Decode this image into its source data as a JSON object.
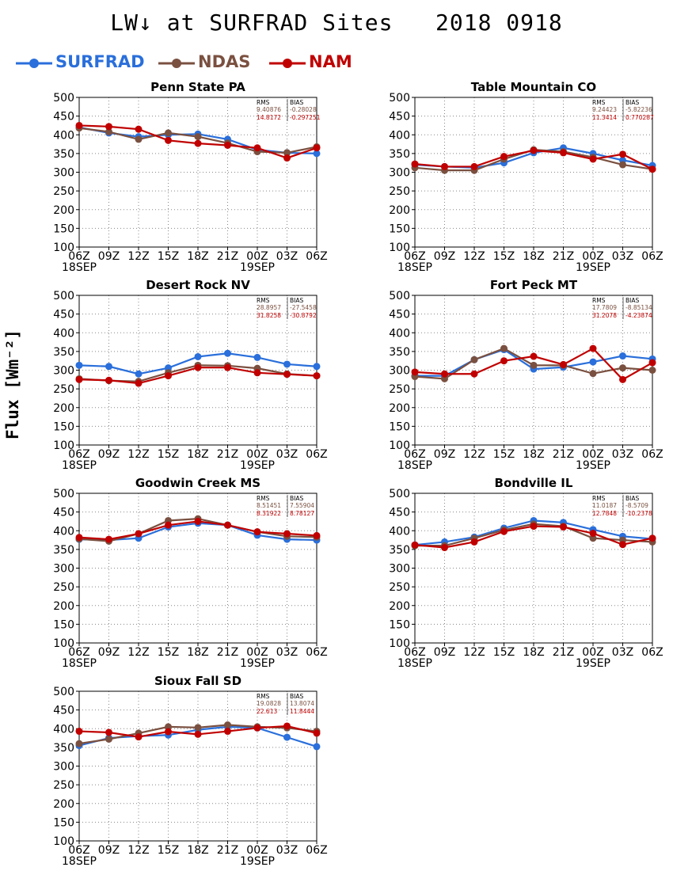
{
  "title": "LW↓ at SURFRAD Sites   2018 0918",
  "ylabel": "Flux [Wm⁻²]",
  "legend": [
    {
      "name": "SURFRAD",
      "color": "#2a6fdb"
    },
    {
      "name": "NDAS",
      "color": "#7a5040"
    },
    {
      "name": "NAM",
      "color": "#c00000"
    }
  ],
  "colors": {
    "SURFRAD": "#2a6fdb",
    "NDAS": "#7a5040",
    "NAM": "#c00000"
  },
  "stats_header": {
    "rms": "RMS",
    "bias": "BIAS"
  },
  "chart_data": [
    {
      "type": "line",
      "title": "Penn State PA",
      "x": [
        "06Z",
        "09Z",
        "12Z",
        "15Z",
        "18Z",
        "21Z",
        "00Z",
        "03Z",
        "06Z"
      ],
      "x_dates": [
        "18SEP",
        "",
        "",
        "",
        "",
        "",
        "19SEP",
        "",
        ""
      ],
      "ylim": [
        100,
        500
      ],
      "yticks": [
        100,
        150,
        200,
        250,
        300,
        350,
        400,
        450,
        500
      ],
      "grid": true,
      "series": [
        {
          "name": "SURFRAD",
          "values": [
            420,
            405,
            395,
            400,
            402,
            388,
            360,
            352,
            350
          ]
        },
        {
          "name": "NDAS",
          "values": [
            418,
            408,
            388,
            405,
            395,
            378,
            355,
            352,
            368
          ]
        },
        {
          "name": "NAM",
          "values": [
            425,
            422,
            415,
            385,
            377,
            372,
            365,
            338,
            365
          ]
        }
      ],
      "stats": [
        {
          "rms": "9.40876",
          "bias": "-0.28028"
        },
        {
          "rms": "14.8172",
          "bias": "-0.297251"
        }
      ]
    },
    {
      "type": "line",
      "title": "Table Mountain CO",
      "x": [
        "06Z",
        "09Z",
        "12Z",
        "15Z",
        "18Z",
        "21Z",
        "00Z",
        "03Z",
        "06Z"
      ],
      "x_dates": [
        "18SEP",
        "",
        "",
        "",
        "",
        "",
        "19SEP",
        "",
        ""
      ],
      "ylim": [
        100,
        500
      ],
      "yticks": [
        100,
        150,
        200,
        250,
        300,
        350,
        400,
        450,
        500
      ],
      "grid": true,
      "series": [
        {
          "name": "SURFRAD",
          "values": [
            320,
            315,
            312,
            325,
            352,
            365,
            350,
            332,
            318
          ]
        },
        {
          "name": "NDAS",
          "values": [
            312,
            305,
            305,
            335,
            360,
            355,
            340,
            320,
            308
          ]
        },
        {
          "name": "NAM",
          "values": [
            322,
            315,
            315,
            342,
            358,
            352,
            335,
            348,
            308
          ]
        }
      ],
      "stats": [
        {
          "rms": "9.24423",
          "bias": "-5.82236"
        },
        {
          "rms": "11.3414",
          "bias": "0.770287"
        }
      ]
    },
    {
      "type": "line",
      "title": "Desert Rock NV",
      "x": [
        "06Z",
        "09Z",
        "12Z",
        "15Z",
        "18Z",
        "21Z",
        "00Z",
        "03Z",
        "06Z"
      ],
      "x_dates": [
        "18SEP",
        "",
        "",
        "",
        "",
        "",
        "19SEP",
        "",
        ""
      ],
      "ylim": [
        100,
        500
      ],
      "yticks": [
        100,
        150,
        200,
        250,
        300,
        350,
        400,
        450,
        500
      ],
      "grid": true,
      "series": [
        {
          "name": "SURFRAD",
          "values": [
            313,
            310,
            290,
            306,
            336,
            345,
            334,
            316,
            310
          ]
        },
        {
          "name": "NDAS",
          "values": [
            277,
            272,
            270,
            293,
            313,
            312,
            305,
            290,
            285
          ]
        },
        {
          "name": "NAM",
          "values": [
            275,
            273,
            265,
            285,
            307,
            307,
            293,
            289,
            285
          ]
        }
      ],
      "stats": [
        {
          "rms": "28.8957",
          "bias": "-27.5458"
        },
        {
          "rms": "31.8258",
          "bias": "-30.8792"
        }
      ]
    },
    {
      "type": "line",
      "title": "Fort Peck MT",
      "x": [
        "06Z",
        "09Z",
        "12Z",
        "15Z",
        "18Z",
        "21Z",
        "00Z",
        "03Z",
        "06Z"
      ],
      "x_dates": [
        "18SEP",
        "",
        "",
        "",
        "",
        "",
        "19SEP",
        "",
        ""
      ],
      "ylim": [
        100,
        500
      ],
      "yticks": [
        100,
        150,
        200,
        250,
        300,
        350,
        400,
        450,
        500
      ],
      "grid": true,
      "series": [
        {
          "name": "SURFRAD",
          "values": [
            285,
            285,
            328,
            355,
            303,
            308,
            322,
            338,
            330
          ]
        },
        {
          "name": "NDAS",
          "values": [
            283,
            277,
            328,
            358,
            313,
            313,
            291,
            306,
            300
          ]
        },
        {
          "name": "NAM",
          "values": [
            295,
            290,
            290,
            325,
            337,
            315,
            358,
            275,
            320
          ]
        }
      ],
      "stats": [
        {
          "rms": "17.7809",
          "bias": "-8.85134"
        },
        {
          "rms": "31.2078",
          "bias": "-4.23874"
        }
      ]
    },
    {
      "type": "line",
      "title": "Goodwin Creek MS",
      "x": [
        "06Z",
        "09Z",
        "12Z",
        "15Z",
        "18Z",
        "21Z",
        "00Z",
        "03Z",
        "06Z"
      ],
      "x_dates": [
        "18SEP",
        "",
        "",
        "",
        "",
        "",
        "19SEP",
        "",
        ""
      ],
      "ylim": [
        100,
        500
      ],
      "yticks": [
        100,
        150,
        200,
        250,
        300,
        350,
        400,
        450,
        500
      ],
      "grid": true,
      "series": [
        {
          "name": "SURFRAD",
          "values": [
            377,
            375,
            380,
            410,
            420,
            415,
            388,
            377,
            375
          ]
        },
        {
          "name": "NDAS",
          "values": [
            378,
            372,
            392,
            427,
            432,
            415,
            397,
            385,
            383
          ]
        },
        {
          "name": "NAM",
          "values": [
            382,
            377,
            392,
            415,
            425,
            415,
            397,
            392,
            387
          ]
        }
      ],
      "stats": [
        {
          "rms": "8.51451",
          "bias": "7.55904"
        },
        {
          "rms": "8.31922",
          "bias": "8.78127"
        }
      ]
    },
    {
      "type": "line",
      "title": "Bondville IL",
      "x": [
        "06Z",
        "09Z",
        "12Z",
        "15Z",
        "18Z",
        "21Z",
        "00Z",
        "03Z",
        "06Z"
      ],
      "x_dates": [
        "18SEP",
        "",
        "",
        "",
        "",
        "",
        "19SEP",
        "",
        ""
      ],
      "ylim": [
        100,
        500
      ],
      "yticks": [
        100,
        150,
        200,
        250,
        300,
        350,
        400,
        450,
        500
      ],
      "grid": true,
      "series": [
        {
          "name": "SURFRAD",
          "values": [
            362,
            370,
            383,
            407,
            427,
            422,
            403,
            385,
            378
          ]
        },
        {
          "name": "NDAS",
          "values": [
            360,
            360,
            380,
            402,
            418,
            412,
            380,
            375,
            370
          ]
        },
        {
          "name": "NAM",
          "values": [
            362,
            355,
            370,
            398,
            412,
            410,
            393,
            363,
            380
          ]
        }
      ],
      "stats": [
        {
          "rms": "11.0187",
          "bias": "-8.5709"
        },
        {
          "rms": "12.7848",
          "bias": "-10.2378"
        }
      ]
    },
    {
      "type": "line",
      "title": "Sioux Fall SD",
      "x": [
        "06Z",
        "09Z",
        "12Z",
        "15Z",
        "18Z",
        "21Z",
        "00Z",
        "03Z",
        "06Z"
      ],
      "x_dates": [
        "18SEP",
        "",
        "",
        "",
        "",
        "",
        "19SEP",
        "",
        ""
      ],
      "ylim": [
        100,
        500
      ],
      "yticks": [
        100,
        150,
        200,
        250,
        300,
        350,
        400,
        450,
        500
      ],
      "grid": true,
      "series": [
        {
          "name": "SURFRAD",
          "values": [
            355,
            375,
            380,
            383,
            397,
            405,
            402,
            377,
            352
          ]
        },
        {
          "name": "NDAS",
          "values": [
            360,
            372,
            388,
            405,
            403,
            410,
            405,
            402,
            393
          ]
        },
        {
          "name": "NAM",
          "values": [
            393,
            390,
            378,
            392,
            385,
            393,
            402,
            407,
            388
          ]
        }
      ],
      "stats": [
        {
          "rms": "19.0828",
          "bias": "13.8074"
        },
        {
          "rms": "22.613",
          "bias": "11.8444"
        }
      ]
    }
  ]
}
